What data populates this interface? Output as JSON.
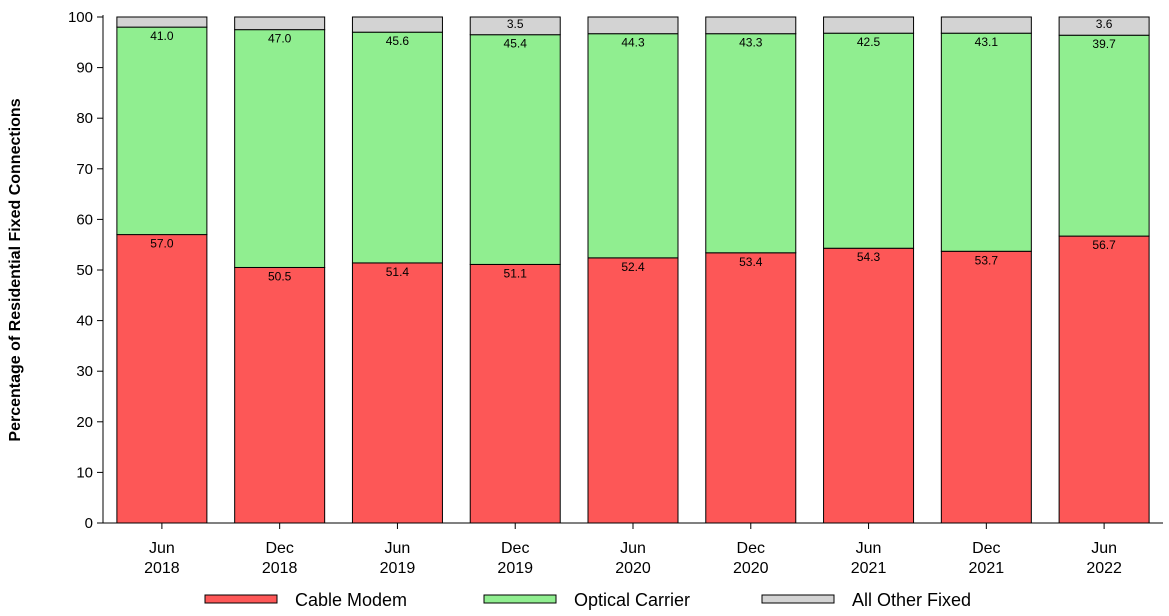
{
  "chart_data": {
    "type": "bar",
    "stacked": true,
    "title": "",
    "xlabel": "",
    "ylabel": "Percentage of Residential Fixed Connections",
    "ylim": [
      0,
      100
    ],
    "yticks": [
      0,
      10,
      20,
      30,
      40,
      50,
      60,
      70,
      80,
      90,
      100
    ],
    "grid": false,
    "legend_position": "bottom",
    "categories": [
      [
        "Jun",
        "2018"
      ],
      [
        "Dec",
        "2018"
      ],
      [
        "Jun",
        "2019"
      ],
      [
        "Dec",
        "2019"
      ],
      [
        "Jun",
        "2020"
      ],
      [
        "Dec",
        "2020"
      ],
      [
        "Jun",
        "2021"
      ],
      [
        "Dec",
        "2021"
      ],
      [
        "Jun",
        "2022"
      ]
    ],
    "series": [
      {
        "name": "Cable Modem",
        "color": "#fd5757",
        "values": [
          57.0,
          50.5,
          51.4,
          51.1,
          52.4,
          53.4,
          54.3,
          53.7,
          56.7
        ],
        "labels": [
          "57.0",
          "50.5",
          "51.4",
          "51.1",
          "52.4",
          "53.4",
          "54.3",
          "53.7",
          "56.7"
        ]
      },
      {
        "name": "Optical Carrier",
        "color": "#90ee90",
        "values": [
          41.0,
          47.0,
          45.6,
          45.4,
          44.3,
          43.3,
          42.5,
          43.1,
          39.7
        ],
        "labels": [
          "41.0",
          "47.0",
          "45.6",
          "45.4",
          "44.3",
          "43.3",
          "42.5",
          "43.1",
          "39.7"
        ]
      },
      {
        "name": "All Other Fixed",
        "color": "#d3d3d3",
        "values": [
          2.0,
          2.5,
          3.0,
          3.5,
          3.3,
          3.3,
          3.2,
          3.2,
          3.6
        ],
        "labels": [
          "",
          "",
          "",
          "3.5",
          "",
          "",
          "",
          "",
          "3.6"
        ]
      }
    ]
  }
}
